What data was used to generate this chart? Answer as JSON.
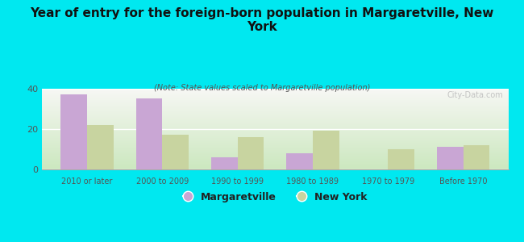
{
  "title": "Year of entry for the foreign-born population in Margaretville, New\nYork",
  "subtitle": "(Note: State values scaled to Margaretville population)",
  "categories": [
    "2010 or later",
    "2000 to 2009",
    "1990 to 1999",
    "1980 to 1989",
    "1970 to 1979",
    "Before 1970"
  ],
  "margaretville": [
    37,
    35,
    6,
    8,
    0,
    11
  ],
  "new_york": [
    22,
    17,
    16,
    19,
    10,
    12
  ],
  "margaretville_color": "#c9a6d4",
  "new_york_color": "#c8d4a0",
  "background_outer": "#00e8f0",
  "background_plot_top": "#f5f5f5",
  "background_plot_bottom": "#d8ecd0",
  "ylim": [
    0,
    40
  ],
  "yticks": [
    0,
    20,
    40
  ],
  "bar_width": 0.35,
  "watermark": "City-Data.com",
  "legend_labels": [
    "Margaretville",
    "New York"
  ]
}
